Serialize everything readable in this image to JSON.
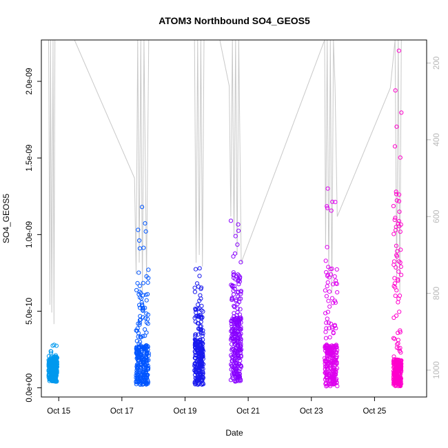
{
  "chart_data": {
    "type": "scatter",
    "title": "ATOM3 Northbound SO4_GEOS5",
    "xlabel": "Date",
    "ylabel": "SO4_GEOS5",
    "xlim": [
      14.45,
      26.65
    ],
    "ylim": [
      -6e-11,
      2.27e-09
    ],
    "y2lim": [
      1070,
      140
    ],
    "x_ticks": [
      {
        "value": 15,
        "label": "Oct 15"
      },
      {
        "value": 17,
        "label": "Oct 17"
      },
      {
        "value": 19,
        "label": "Oct 19"
      },
      {
        "value": 21,
        "label": "Oct 21"
      },
      {
        "value": 23,
        "label": "Oct 23"
      },
      {
        "value": 25,
        "label": "Oct 25"
      }
    ],
    "y_ticks": [
      {
        "value": 0,
        "label": "0.0e+00"
      },
      {
        "value": 5e-10,
        "label": "5.0e-10"
      },
      {
        "value": 1e-09,
        "label": "1.0e-09"
      },
      {
        "value": 1.5e-09,
        "label": "1.5e-09"
      },
      {
        "value": 2e-09,
        "label": "2.0e-09"
      }
    ],
    "y2_ticks": [
      {
        "value": 200,
        "label": "200"
      },
      {
        "value": 400,
        "label": "400"
      },
      {
        "value": 600,
        "label": "600"
      },
      {
        "value": 800,
        "label": "800"
      },
      {
        "value": 1000,
        "label": "1000"
      }
    ],
    "series": [
      {
        "color": "#0099ee",
        "x_start": 14.68,
        "x_end": 14.95,
        "y_low": 4e-11,
        "y_base": 1.3e-10,
        "y_peak": 2.8e-10
      },
      {
        "color": "#0055ff",
        "x_start": 17.45,
        "x_end": 17.85,
        "y_low": 2e-11,
        "y_base": 1.8e-10,
        "y_peak": 1.18e-09
      },
      {
        "color": "#1a1aee",
        "x_start": 19.3,
        "x_end": 19.58,
        "y_low": 2e-11,
        "y_base": 2e-10,
        "y_peak": 7.8e-10
      },
      {
        "color": "#8800ff",
        "x_start": 20.45,
        "x_end": 20.78,
        "y_low": 4e-11,
        "y_base": 3e-10,
        "y_peak": 1.09e-09
      },
      {
        "color": "#dd00ee",
        "x_start": 23.42,
        "x_end": 23.82,
        "y_low": 1e-11,
        "y_base": 1.8e-10,
        "y_peak": 1.3e-09
      },
      {
        "color": "#ff00cc",
        "x_start": 25.6,
        "x_end": 25.85,
        "y_low": 1e-11,
        "y_base": 1.2e-10,
        "y_peak": 2.2e-09
      }
    ],
    "altitude_trace": {
      "color": "#c8c8c8",
      "points": [
        [
          14.68,
          140
        ],
        [
          14.72,
          830
        ],
        [
          14.74,
          140
        ],
        [
          14.78,
          850
        ],
        [
          14.82,
          140
        ],
        [
          14.85,
          880
        ],
        [
          14.88,
          140
        ],
        [
          15.5,
          140
        ],
        [
          17.4,
          500
        ],
        [
          17.45,
          750
        ],
        [
          17.5,
          140
        ],
        [
          17.55,
          720
        ],
        [
          17.6,
          140
        ],
        [
          17.65,
          800
        ],
        [
          17.7,
          140
        ],
        [
          17.78,
          760
        ],
        [
          17.85,
          140
        ],
        [
          19.3,
          140
        ],
        [
          19.35,
          720
        ],
        [
          19.4,
          140
        ],
        [
          19.45,
          700
        ],
        [
          19.5,
          140
        ],
        [
          19.55,
          730
        ],
        [
          19.6,
          140
        ],
        [
          20.1,
          140
        ],
        [
          20.4,
          260
        ],
        [
          20.45,
          600
        ],
        [
          20.5,
          140
        ],
        [
          20.55,
          650
        ],
        [
          20.6,
          140
        ],
        [
          20.65,
          700
        ],
        [
          20.7,
          140
        ],
        [
          20.78,
          720
        ],
        [
          23.42,
          140
        ],
        [
          23.45,
          680
        ],
        [
          23.5,
          140
        ],
        [
          23.55,
          760
        ],
        [
          23.6,
          140
        ],
        [
          23.65,
          800
        ],
        [
          23.7,
          140
        ],
        [
          23.75,
          260
        ],
        [
          23.82,
          600
        ],
        [
          25.5,
          265
        ],
        [
          25.65,
          140
        ],
        [
          25.7,
          760
        ],
        [
          25.75,
          140
        ],
        [
          25.8,
          800
        ],
        [
          25.85,
          140
        ]
      ]
    }
  }
}
